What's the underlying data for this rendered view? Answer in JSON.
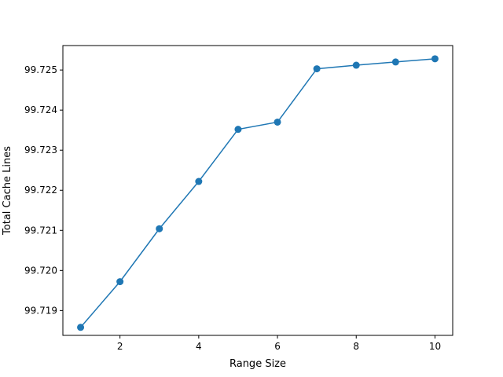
{
  "chart_data": {
    "type": "line",
    "xlabel": "Range Size",
    "ylabel": "Total Cache Lines",
    "xlim": [
      0.55,
      10.45
    ],
    "ylim": [
      99.71838,
      99.72561
    ],
    "x_ticks": [
      2,
      4,
      6,
      8,
      10
    ],
    "y_ticks": [
      99.719,
      99.72,
      99.721,
      99.722,
      99.723,
      99.724,
      99.725
    ],
    "y_tick_labels": [
      "99.719",
      "99.720",
      "99.721",
      "99.722",
      "99.723",
      "99.724",
      "99.725"
    ],
    "grid": false,
    "color": "#1f77b4",
    "x": [
      1,
      2,
      3,
      4,
      5,
      6,
      7,
      8,
      9,
      10
    ],
    "y": [
      99.71858,
      99.71972,
      99.72104,
      99.72222,
      99.72352,
      99.7237,
      99.72503,
      99.72512,
      99.7252,
      99.72528
    ]
  }
}
